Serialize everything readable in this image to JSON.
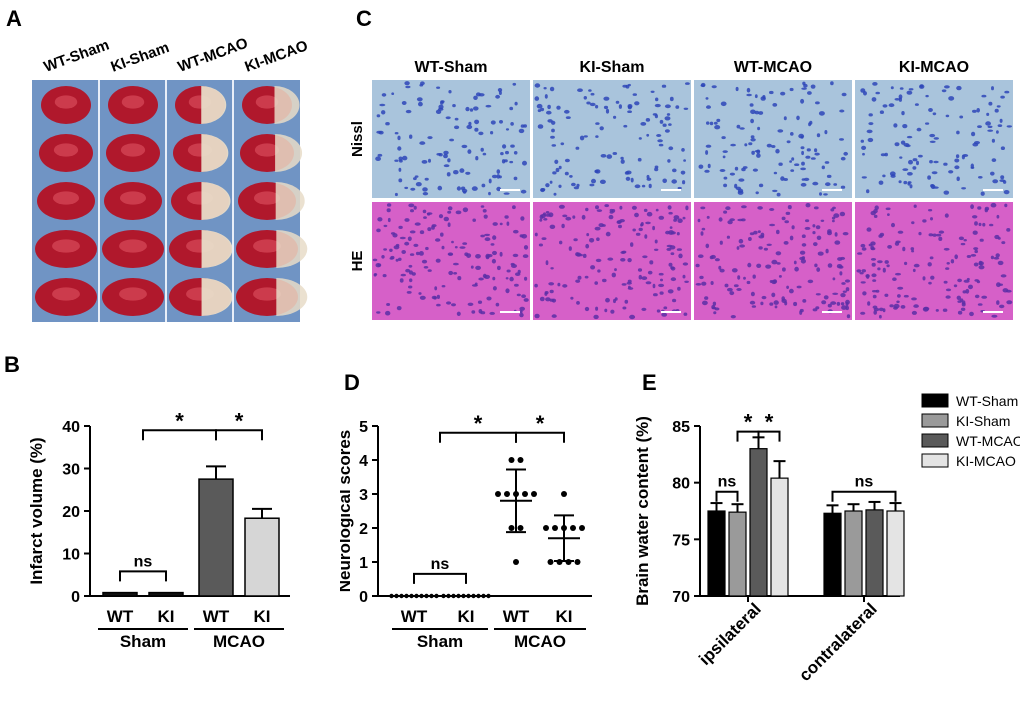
{
  "panels": {
    "A": {
      "letter": "A",
      "groups": [
        "WT-Sham",
        "KI-Sham",
        "WT-MCAO",
        "KI-MCAO"
      ]
    },
    "C": {
      "letter": "C",
      "columns": [
        "WT-Sham",
        "KI-Sham",
        "WT-MCAO",
        "KI-MCAO"
      ],
      "rows": [
        "Nissl",
        "HE"
      ],
      "colors": {
        "nissl_bg": "#a9c4dc",
        "nissl_cell": "#2e46b8",
        "he_bg": "#d660c8",
        "he_cell": "#5a2fa6"
      }
    },
    "B": {
      "letter": "B"
    },
    "D": {
      "letter": "D"
    },
    "E": {
      "letter": "E"
    }
  },
  "chart_data": [
    {
      "id": "B",
      "type": "bar",
      "ylabel": "Infarct volume (%)",
      "ylim": [
        0,
        40
      ],
      "yticks": [
        0,
        10,
        20,
        30,
        40
      ],
      "categories": [
        "WT",
        "KI",
        "WT",
        "KI"
      ],
      "groups": [
        {
          "name": "Sham",
          "span": [
            0,
            1
          ]
        },
        {
          "name": "MCAO",
          "span": [
            2,
            3
          ]
        }
      ],
      "values": [
        0.8,
        0.8,
        27.5,
        18.3
      ],
      "errors": [
        0,
        0,
        3.0,
        2.2
      ],
      "colors": [
        "#111111",
        "#111111",
        "#5a5a5a",
        "#d6d6d6"
      ],
      "significance": [
        {
          "from": 0.5,
          "to": 2,
          "label": "*",
          "y": 39
        },
        {
          "from": 2,
          "to": 3,
          "label": "*",
          "y": 39
        },
        {
          "from": 0,
          "to": 1,
          "label": "ns",
          "y": 5.8
        }
      ]
    },
    {
      "id": "D",
      "type": "scatter",
      "ylabel": "Neurological scores",
      "ylim": [
        0,
        5
      ],
      "yticks": [
        0,
        1,
        2,
        3,
        4,
        5
      ],
      "categories": [
        "WT",
        "KI",
        "WT",
        "KI"
      ],
      "groups": [
        {
          "name": "Sham",
          "span": [
            0,
            1
          ]
        },
        {
          "name": "MCAO",
          "span": [
            2,
            3
          ]
        }
      ],
      "points": [
        [
          0,
          0,
          0,
          0,
          0,
          0,
          0,
          0,
          0,
          0
        ],
        [
          0,
          0,
          0,
          0,
          0,
          0,
          0,
          0,
          0,
          0
        ],
        [
          4,
          4,
          3,
          3,
          3,
          3,
          2,
          2,
          1,
          3
        ],
        [
          3,
          2,
          2,
          2,
          2,
          1,
          1,
          1,
          1,
          2
        ]
      ],
      "means": [
        0,
        0,
        2.8,
        1.7
      ],
      "sd": [
        0,
        0,
        0.92,
        0.67
      ],
      "significance": [
        {
          "from": 0.5,
          "to": 2,
          "label": "*",
          "y": 4.8
        },
        {
          "from": 2,
          "to": 3,
          "label": "*",
          "y": 4.8
        },
        {
          "from": 0,
          "to": 1,
          "label": "ns",
          "y": 0.65
        }
      ]
    },
    {
      "id": "E",
      "type": "bar",
      "ylabel": "Brain water content (%)",
      "ylim": [
        70,
        85
      ],
      "yticks": [
        70,
        75,
        80,
        85
      ],
      "categories": [
        "ipsilateral",
        "contralateral"
      ],
      "series": [
        {
          "name": "WT-Sham",
          "values": [
            77.5,
            77.3
          ],
          "errors": [
            0.7,
            0.7
          ],
          "color": "#000000"
        },
        {
          "name": "KI-Sham",
          "values": [
            77.4,
            77.5
          ],
          "errors": [
            0.7,
            0.6
          ],
          "color": "#9a9a9a"
        },
        {
          "name": "WT-MCAO",
          "values": [
            83.0,
            77.6
          ],
          "errors": [
            1.0,
            0.7
          ],
          "color": "#5a5a5a"
        },
        {
          "name": "KI-MCAO",
          "values": [
            80.4,
            77.5
          ],
          "errors": [
            1.5,
            0.7
          ],
          "color": "#e4e4e4"
        }
      ],
      "significance": [
        {
          "cat": 0,
          "from": 0,
          "to": 1,
          "label": "ns",
          "y": 79.2
        },
        {
          "cat": 0,
          "from": 1,
          "to": 2,
          "label": "*",
          "y": 84.5
        },
        {
          "cat": 0,
          "from": 2,
          "to": 3,
          "label": "*",
          "y": 84.5
        },
        {
          "cat": 1,
          "from": 0,
          "to": 3,
          "label": "ns",
          "y": 79.2
        }
      ],
      "legend": "right"
    }
  ]
}
